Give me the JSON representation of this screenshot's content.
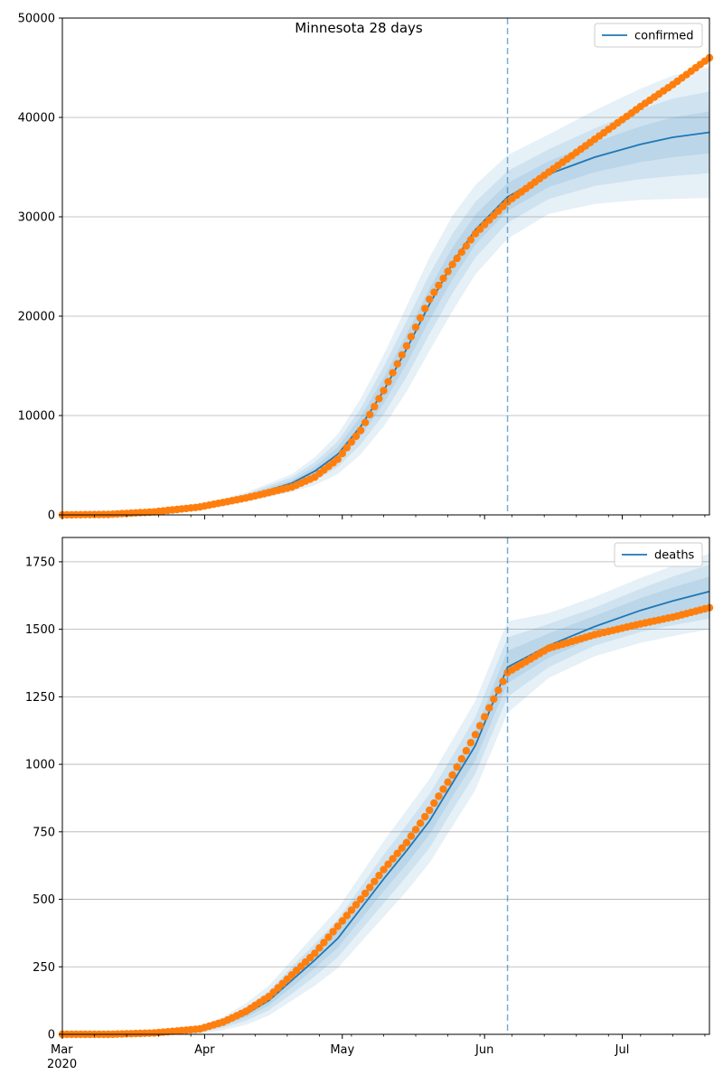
{
  "figure": {
    "title": "Minnesota 28 days",
    "x_tick_labels": [
      "Mar",
      "Apr",
      "May",
      "Jun",
      "Jul"
    ],
    "x_year_label": "2020",
    "colors": {
      "model": "#1f77b4",
      "observed": "#ff7f0e",
      "band": "#1f77b4",
      "grid": "#b0b0b0",
      "cutoff": "#1f77b4"
    }
  },
  "chart_data": [
    {
      "type": "line",
      "legend": "confirmed",
      "legend_position": "top-right",
      "grid": "horizontal",
      "xlim": [
        "2020-03-01",
        "2020-07-20"
      ],
      "ylim": [
        0,
        50000
      ],
      "y_ticks": [
        0,
        10000,
        20000,
        30000,
        40000,
        50000
      ],
      "forecast_start": "2020-06-06",
      "series": [
        {
          "name": "confirmed",
          "kind": "model",
          "x": [
            "2020-03-01",
            "2020-03-11",
            "2020-03-21",
            "2020-03-31",
            "2020-04-10",
            "2020-04-20",
            "2020-04-25",
            "2020-04-30",
            "2020-05-05",
            "2020-05-10",
            "2020-05-15",
            "2020-05-20",
            "2020-05-25",
            "2020-05-30",
            "2020-06-06",
            "2020-06-15",
            "2020-06-25",
            "2020-07-05",
            "2020-07-12",
            "2020-07-20"
          ],
          "y": [
            0,
            50,
            200,
            800,
            1800,
            3200,
            4400,
            6100,
            8900,
            12500,
            16700,
            21200,
            25300,
            28700,
            32000,
            34300,
            36000,
            37300,
            38000,
            38500
          ]
        },
        {
          "name": "",
          "kind": "observed",
          "x": [
            "2020-03-01",
            "2020-03-11",
            "2020-03-21",
            "2020-03-31",
            "2020-04-10",
            "2020-04-20",
            "2020-04-25",
            "2020-04-30",
            "2020-05-05",
            "2020-05-10",
            "2020-05-15",
            "2020-05-20",
            "2020-05-25",
            "2020-05-30",
            "2020-06-06",
            "2020-06-15",
            "2020-06-25",
            "2020-07-05",
            "2020-07-12",
            "2020-07-20"
          ],
          "y": [
            0,
            50,
            300,
            800,
            1700,
            2800,
            3800,
            5600,
            8500,
            12500,
            17000,
            21700,
            25200,
            28300,
            31500,
            34500,
            37800,
            41100,
            43300,
            46000
          ]
        }
      ],
      "band_half_widths": [
        [
          0,
          5,
          20,
          60,
          150,
          300,
          450,
          700,
          1000,
          1300,
          1500,
          1600,
          1600,
          1500,
          1400,
          1300,
          1500,
          1800,
          2000,
          2100
        ],
        [
          0,
          10,
          40,
          120,
          300,
          600,
          900,
          1300,
          1800,
          2400,
          2800,
          3000,
          3000,
          2800,
          2600,
          2500,
          2900,
          3500,
          3900,
          4100
        ],
        [
          0,
          20,
          60,
          200,
          450,
          900,
          1400,
          2000,
          2800,
          3600,
          4300,
          4700,
          4800,
          4500,
          4200,
          4000,
          4700,
          5600,
          6200,
          6600
        ]
      ]
    },
    {
      "type": "line",
      "legend": "deaths",
      "legend_position": "top-right",
      "grid": "horizontal",
      "xlim": [
        "2020-03-01",
        "2020-07-20"
      ],
      "ylim": [
        0,
        1840
      ],
      "y_ticks": [
        0,
        250,
        500,
        750,
        1000,
        1250,
        1500,
        1750
      ],
      "forecast_start": "2020-06-06",
      "series": [
        {
          "name": "deaths",
          "kind": "model",
          "x": [
            "2020-03-01",
            "2020-03-11",
            "2020-03-21",
            "2020-03-31",
            "2020-04-05",
            "2020-04-10",
            "2020-04-15",
            "2020-04-20",
            "2020-04-25",
            "2020-04-30",
            "2020-05-05",
            "2020-05-10",
            "2020-05-15",
            "2020-05-20",
            "2020-05-25",
            "2020-05-30",
            "2020-06-06",
            "2020-06-15",
            "2020-06-25",
            "2020-07-05",
            "2020-07-12",
            "2020-07-20"
          ],
          "y": [
            0,
            0,
            3,
            15,
            40,
            75,
            125,
            200,
            275,
            355,
            465,
            575,
            680,
            790,
            930,
            1070,
            1360,
            1440,
            1510,
            1570,
            1605,
            1640
          ]
        },
        {
          "name": "",
          "kind": "observed",
          "x": [
            "2020-03-01",
            "2020-03-11",
            "2020-03-21",
            "2020-03-31",
            "2020-04-05",
            "2020-04-10",
            "2020-04-15",
            "2020-04-20",
            "2020-04-25",
            "2020-04-30",
            "2020-05-05",
            "2020-05-10",
            "2020-05-15",
            "2020-05-20",
            "2020-05-25",
            "2020-05-30",
            "2020-06-06",
            "2020-06-15",
            "2020-06-25",
            "2020-07-05",
            "2020-07-12",
            "2020-07-20"
          ],
          "y": [
            0,
            0,
            5,
            20,
            45,
            85,
            140,
            220,
            300,
            400,
            500,
            610,
            710,
            830,
            960,
            1110,
            1340,
            1430,
            1480,
            1520,
            1545,
            1580
          ]
        }
      ],
      "band_half_widths": [
        [
          0,
          0,
          1,
          4,
          8,
          12,
          18,
          25,
          30,
          35,
          40,
          45,
          50,
          50,
          50,
          55,
          60,
          45,
          40,
          45,
          50,
          55
        ],
        [
          0,
          0,
          2,
          8,
          15,
          25,
          35,
          50,
          60,
          70,
          80,
          90,
          95,
          100,
          100,
          105,
          110,
          80,
          70,
          80,
          90,
          100
        ],
        [
          0,
          1,
          4,
          12,
          25,
          40,
          55,
          75,
          95,
          110,
          125,
          140,
          150,
          155,
          160,
          165,
          170,
          120,
          110,
          120,
          130,
          140
        ]
      ]
    }
  ]
}
